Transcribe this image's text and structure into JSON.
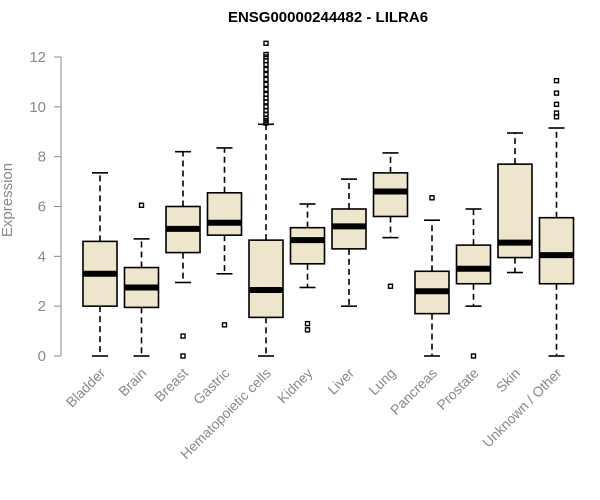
{
  "chart_data": {
    "type": "box",
    "title": "ENSG00000244482 - LILRA6",
    "xlabel": "",
    "ylabel": "Expression",
    "ylim": [
      0,
      12.6
    ],
    "yticks": [
      0,
      2,
      4,
      6,
      8,
      10,
      12
    ],
    "categories": [
      "Bladder",
      "Brain",
      "Breast",
      "Gastric",
      "Hematopoietic cells",
      "Kidney",
      "Liver",
      "Lung",
      "Pancreas",
      "Prostate",
      "Skin",
      "Unknown / Other"
    ],
    "box_fill": "#ede6cd",
    "boxes": [
      {
        "min": 0.0,
        "q1": 2.0,
        "median": 3.3,
        "q3": 4.6,
        "max": 7.35,
        "outliers": []
      },
      {
        "min": 0.0,
        "q1": 1.95,
        "median": 2.75,
        "q3": 3.55,
        "max": 4.7,
        "outliers": [
          6.05
        ]
      },
      {
        "min": 2.95,
        "q1": 4.15,
        "median": 5.1,
        "q3": 6.0,
        "max": 8.2,
        "outliers": [
          0.8,
          0.0
        ]
      },
      {
        "min": 3.3,
        "q1": 4.85,
        "median": 5.35,
        "q3": 6.55,
        "max": 8.35,
        "outliers": [
          1.25
        ]
      },
      {
        "min": 0.0,
        "q1": 1.55,
        "median": 2.65,
        "q3": 4.65,
        "max": 9.3,
        "outliers": [
          9.35,
          9.45,
          9.55,
          9.7,
          9.85,
          10.0,
          10.2,
          10.35,
          10.5,
          10.7,
          10.9,
          11.1,
          11.3,
          11.5,
          11.7,
          11.85,
          12.0,
          12.1,
          12.55
        ]
      },
      {
        "min": 2.75,
        "q1": 3.7,
        "median": 4.65,
        "q3": 5.15,
        "max": 6.1,
        "outliers": [
          1.3,
          1.05
        ]
      },
      {
        "min": 2.0,
        "q1": 4.3,
        "median": 5.2,
        "q3": 5.9,
        "max": 7.1,
        "outliers": []
      },
      {
        "min": 4.75,
        "q1": 5.6,
        "median": 6.6,
        "q3": 7.35,
        "max": 8.15,
        "outliers": [
          2.8
        ]
      },
      {
        "min": 0.0,
        "q1": 1.7,
        "median": 2.6,
        "q3": 3.4,
        "max": 5.45,
        "outliers": [
          6.35
        ]
      },
      {
        "min": 2.0,
        "q1": 2.9,
        "median": 3.5,
        "q3": 4.45,
        "max": 5.9,
        "outliers": [
          0.0
        ]
      },
      {
        "min": 3.35,
        "q1": 3.95,
        "median": 4.55,
        "q3": 7.7,
        "max": 8.95,
        "outliers": []
      },
      {
        "min": 0.0,
        "q1": 2.9,
        "median": 4.05,
        "q3": 5.55,
        "max": 9.15,
        "outliers": [
          9.6,
          9.75,
          10.1,
          10.55,
          11.05
        ]
      }
    ]
  }
}
